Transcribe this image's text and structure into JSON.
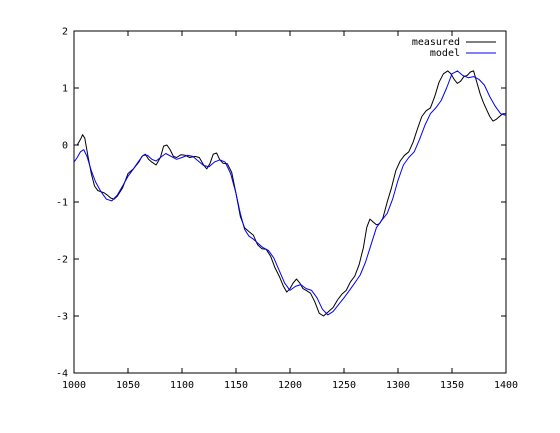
{
  "chart_data": {
    "type": "line",
    "title": "",
    "xlabel": "",
    "ylabel": "",
    "xlim": [
      1000,
      1400
    ],
    "ylim": [
      -4,
      2
    ],
    "xticks": [
      1000,
      1050,
      1100,
      1150,
      1200,
      1250,
      1300,
      1350,
      1400
    ],
    "yticks": [
      -4,
      -3,
      -2,
      -1,
      0,
      1,
      2
    ],
    "grid": false,
    "legend": "top-right",
    "series": [
      {
        "name": "measured",
        "color": "#000000",
        "x": [
          1000,
          1003,
          1006,
          1008,
          1010,
          1013,
          1016,
          1019,
          1022,
          1025,
          1028,
          1031,
          1034,
          1037,
          1040,
          1045,
          1050,
          1055,
          1060,
          1063,
          1066,
          1069,
          1072,
          1076,
          1080,
          1083,
          1086,
          1089,
          1092,
          1095,
          1099,
          1103,
          1107,
          1112,
          1116,
          1120,
          1123,
          1126,
          1129,
          1132,
          1135,
          1138,
          1142,
          1146,
          1150,
          1154,
          1158,
          1162,
          1166,
          1170,
          1174,
          1178,
          1182,
          1186,
          1190,
          1194,
          1197,
          1200,
          1203,
          1206,
          1209,
          1212,
          1215,
          1219,
          1223,
          1227,
          1231,
          1234,
          1237,
          1240,
          1244,
          1248,
          1252,
          1256,
          1260,
          1264,
          1268,
          1271,
          1274,
          1277,
          1280,
          1283,
          1286,
          1290,
          1294,
          1298,
          1302,
          1306,
          1310,
          1314,
          1318,
          1322,
          1326,
          1330,
          1334,
          1338,
          1342,
          1346,
          1349,
          1352,
          1355,
          1358,
          1361,
          1364,
          1367,
          1370,
          1373,
          1376,
          1379,
          1382,
          1385,
          1388,
          1391,
          1394,
          1397,
          1400
        ],
        "y": [
          0.0,
          0.0,
          0.1,
          0.18,
          0.12,
          -0.2,
          -0.5,
          -0.72,
          -0.8,
          -0.82,
          -0.84,
          -0.88,
          -0.93,
          -0.95,
          -0.9,
          -0.75,
          -0.5,
          -0.42,
          -0.3,
          -0.2,
          -0.16,
          -0.25,
          -0.3,
          -0.35,
          -0.22,
          -0.02,
          0.0,
          -0.08,
          -0.2,
          -0.22,
          -0.17,
          -0.18,
          -0.22,
          -0.2,
          -0.22,
          -0.35,
          -0.42,
          -0.32,
          -0.16,
          -0.14,
          -0.26,
          -0.32,
          -0.33,
          -0.48,
          -0.85,
          -1.25,
          -1.45,
          -1.52,
          -1.58,
          -1.75,
          -1.82,
          -1.83,
          -1.95,
          -2.15,
          -2.3,
          -2.48,
          -2.58,
          -2.52,
          -2.42,
          -2.35,
          -2.42,
          -2.52,
          -2.55,
          -2.6,
          -2.75,
          -2.95,
          -3.0,
          -2.95,
          -2.9,
          -2.85,
          -2.72,
          -2.62,
          -2.55,
          -2.4,
          -2.3,
          -2.1,
          -1.8,
          -1.45,
          -1.3,
          -1.35,
          -1.4,
          -1.38,
          -1.28,
          -1.0,
          -0.75,
          -0.45,
          -0.28,
          -0.18,
          -0.12,
          0.05,
          0.28,
          0.5,
          0.6,
          0.65,
          0.85,
          1.1,
          1.25,
          1.3,
          1.25,
          1.15,
          1.08,
          1.12,
          1.2,
          1.22,
          1.28,
          1.3,
          1.1,
          0.9,
          0.75,
          0.62,
          0.5,
          0.42,
          0.45,
          0.5,
          0.55,
          0.55
        ]
      },
      {
        "name": "model",
        "color": "#0000ff",
        "x": [
          1000,
          1003,
          1006,
          1009,
          1012,
          1016,
          1020,
          1025,
          1030,
          1035,
          1040,
          1045,
          1050,
          1055,
          1060,
          1064,
          1068,
          1072,
          1076,
          1080,
          1085,
          1090,
          1095,
          1100,
          1105,
          1110,
          1115,
          1120,
          1125,
          1130,
          1135,
          1140,
          1145,
          1150,
          1154,
          1158,
          1162,
          1166,
          1170,
          1175,
          1180,
          1185,
          1190,
          1195,
          1200,
          1205,
          1210,
          1215,
          1220,
          1225,
          1230,
          1235,
          1240,
          1245,
          1250,
          1255,
          1260,
          1265,
          1270,
          1275,
          1280,
          1285,
          1290,
          1295,
          1300,
          1305,
          1310,
          1315,
          1320,
          1325,
          1330,
          1335,
          1340,
          1345,
          1350,
          1355,
          1360,
          1365,
          1370,
          1375,
          1380,
          1385,
          1390,
          1395,
          1400
        ],
        "y": [
          -0.3,
          -0.22,
          -0.12,
          -0.08,
          -0.2,
          -0.45,
          -0.65,
          -0.82,
          -0.95,
          -0.98,
          -0.88,
          -0.72,
          -0.55,
          -0.42,
          -0.28,
          -0.18,
          -0.18,
          -0.25,
          -0.28,
          -0.22,
          -0.15,
          -0.2,
          -0.25,
          -0.22,
          -0.18,
          -0.2,
          -0.28,
          -0.36,
          -0.38,
          -0.3,
          -0.26,
          -0.3,
          -0.5,
          -0.85,
          -1.2,
          -1.48,
          -1.6,
          -1.65,
          -1.72,
          -1.8,
          -1.85,
          -1.98,
          -2.2,
          -2.42,
          -2.55,
          -2.48,
          -2.45,
          -2.52,
          -2.55,
          -2.68,
          -2.88,
          -2.98,
          -2.92,
          -2.8,
          -2.68,
          -2.55,
          -2.42,
          -2.28,
          -2.05,
          -1.75,
          -1.45,
          -1.32,
          -1.2,
          -0.95,
          -0.62,
          -0.35,
          -0.22,
          -0.12,
          0.1,
          0.35,
          0.55,
          0.65,
          0.78,
          1.0,
          1.25,
          1.3,
          1.22,
          1.18,
          1.2,
          1.15,
          1.05,
          0.85,
          0.68,
          0.55,
          0.52
        ]
      }
    ]
  }
}
